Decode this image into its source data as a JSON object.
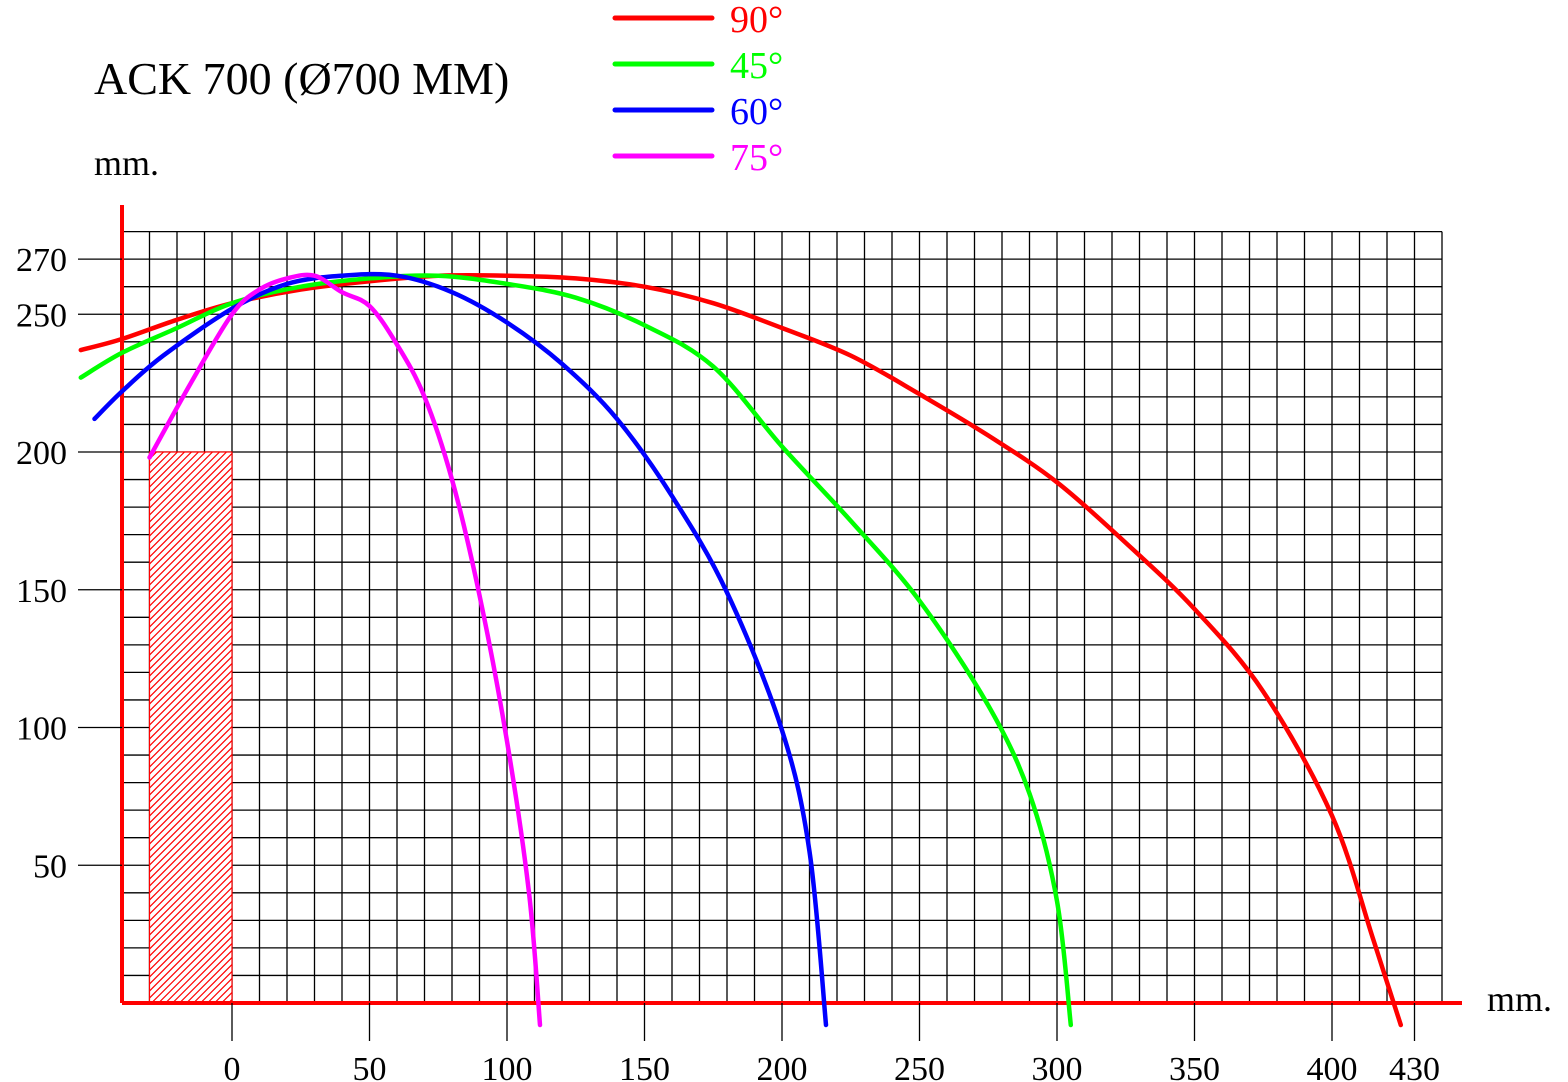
{
  "chart_data": {
    "type": "line",
    "title": "ACK 700 (Ø700 MM)",
    "xlabel": "mm.",
    "ylabel": "mm.",
    "xlim": [
      -40,
      440
    ],
    "ylim": [
      -8,
      282
    ],
    "x_ticks": [
      0,
      50,
      100,
      150,
      200,
      250,
      300,
      350,
      400,
      430
    ],
    "y_ticks": [
      50,
      100,
      150,
      200,
      250,
      270
    ],
    "grid": true,
    "grid_x_step": 10,
    "grid_y_step": 10,
    "grid_x_range": [
      -40,
      440
    ],
    "grid_y_range": [
      0,
      280
    ],
    "legend_position": "top-center",
    "hatched_region": {
      "x": [
        -30,
        0
      ],
      "y": [
        0,
        200
      ],
      "color": "#ff0000"
    },
    "series": [
      {
        "name": "90°",
        "color": "#ff0000",
        "points": [
          [
            -55,
            237
          ],
          [
            -40,
            241
          ],
          [
            -20,
            248
          ],
          [
            0,
            254
          ],
          [
            25,
            259
          ],
          [
            50,
            262
          ],
          [
            75,
            264
          ],
          [
            100,
            264
          ],
          [
            125,
            263
          ],
          [
            150,
            260
          ],
          [
            175,
            254
          ],
          [
            200,
            245
          ],
          [
            225,
            235
          ],
          [
            250,
            221
          ],
          [
            275,
            206
          ],
          [
            300,
            189
          ],
          [
            325,
            167
          ],
          [
            350,
            143
          ],
          [
            375,
            113
          ],
          [
            400,
            68
          ],
          [
            415,
            23
          ],
          [
            425,
            -8
          ]
        ]
      },
      {
        "name": "45°",
        "color": "#00ff00",
        "points": [
          [
            -55,
            227
          ],
          [
            -40,
            236
          ],
          [
            -20,
            245
          ],
          [
            0,
            254
          ],
          [
            25,
            260
          ],
          [
            50,
            263
          ],
          [
            75,
            264
          ],
          [
            100,
            261
          ],
          [
            125,
            256
          ],
          [
            150,
            246
          ],
          [
            175,
            231
          ],
          [
            200,
            202
          ],
          [
            225,
            175
          ],
          [
            250,
            146
          ],
          [
            275,
            108
          ],
          [
            290,
            76
          ],
          [
            300,
            37
          ],
          [
            305,
            -8
          ]
        ]
      },
      {
        "name": "60°",
        "color": "#0000ff",
        "points": [
          [
            -50,
            212
          ],
          [
            -40,
            222
          ],
          [
            -25,
            235
          ],
          [
            0,
            252
          ],
          [
            20,
            261
          ],
          [
            40,
            264
          ],
          [
            60,
            264
          ],
          [
            80,
            258
          ],
          [
            100,
            247
          ],
          [
            120,
            232
          ],
          [
            140,
            212
          ],
          [
            160,
            184
          ],
          [
            180,
            149
          ],
          [
            200,
            99
          ],
          [
            210,
            55
          ],
          [
            216,
            -8
          ]
        ]
      },
      {
        "name": "75°",
        "color": "#ff00ff",
        "points": [
          [
            -30,
            198
          ],
          [
            -15,
            225
          ],
          [
            0,
            250
          ],
          [
            10,
            259
          ],
          [
            20,
            263
          ],
          [
            30,
            264
          ],
          [
            40,
            258
          ],
          [
            50,
            253
          ],
          [
            60,
            239
          ],
          [
            70,
            220
          ],
          [
            80,
            190
          ],
          [
            90,
            148
          ],
          [
            100,
            95
          ],
          [
            108,
            40
          ],
          [
            112,
            -8
          ]
        ]
      }
    ]
  }
}
